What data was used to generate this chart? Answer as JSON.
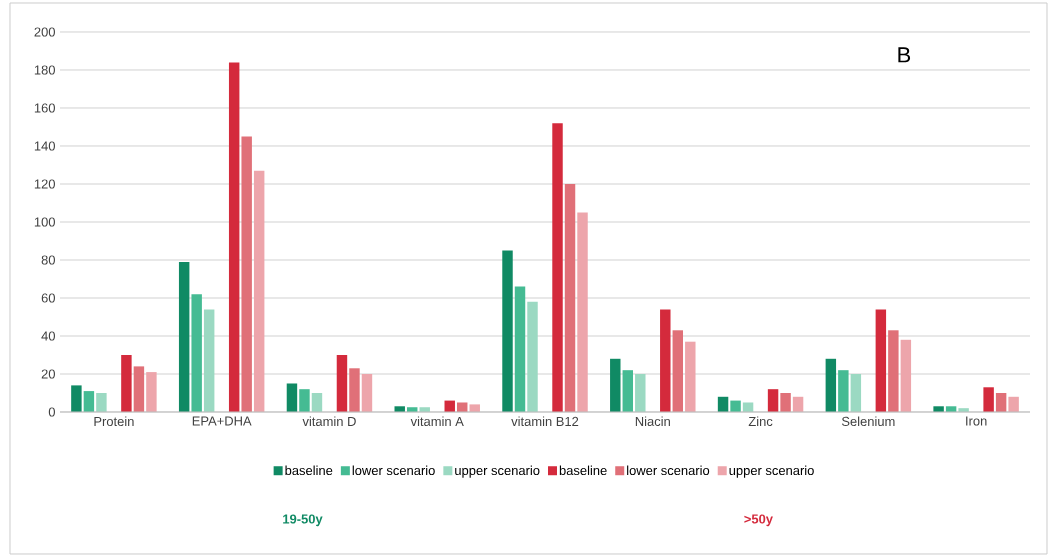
{
  "chart_data": {
    "type": "bar",
    "categories": [
      "Protein",
      "EPA+DHA",
      "vitamin D",
      "vitamin A",
      "vitamin B12",
      "Niacin",
      "Zinc",
      "Selenium",
      "Iron"
    ],
    "series": [
      {
        "name": "baseline",
        "color": "#108a64",
        "values": [
          14,
          79,
          15,
          3,
          85,
          28,
          8,
          28,
          3
        ]
      },
      {
        "name": "lower scenario",
        "color": "#45bb93",
        "values": [
          11,
          62,
          12,
          2.5,
          66,
          22,
          6,
          22,
          3
        ]
      },
      {
        "name": "upper scenario",
        "color": "#9bd9c2",
        "values": [
          10,
          54,
          10,
          2.5,
          58,
          20,
          5,
          20,
          2
        ]
      },
      {
        "name": "baseline",
        "color": "#d42a3c",
        "values": [
          30,
          184,
          30,
          6,
          152,
          54,
          12,
          54,
          13
        ]
      },
      {
        "name": "lower scenario",
        "color": "#e07078",
        "values": [
          24,
          145,
          23,
          5,
          120,
          43,
          10,
          43,
          10
        ]
      },
      {
        "name": "upper scenario",
        "color": "#eda5ab",
        "values": [
          21,
          127,
          20,
          4,
          105,
          37,
          8,
          38,
          8
        ]
      }
    ],
    "ylim": [
      0,
      200
    ],
    "yticks": [
      0,
      20,
      40,
      60,
      80,
      100,
      120,
      140,
      160,
      180,
      200
    ],
    "grid": "y",
    "legend": "bottom",
    "annotations": [
      "B",
      "19-50y",
      ">50y"
    ]
  }
}
